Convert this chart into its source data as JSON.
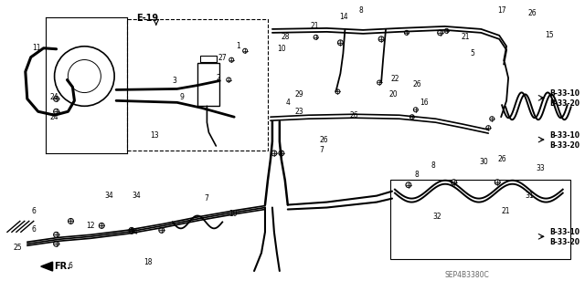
{
  "bg_color": "#ffffff",
  "line_color": "#000000",
  "diagram_code": "SEP4B3380C",
  "e19_label": "E-19",
  "fr_label": "FR."
}
